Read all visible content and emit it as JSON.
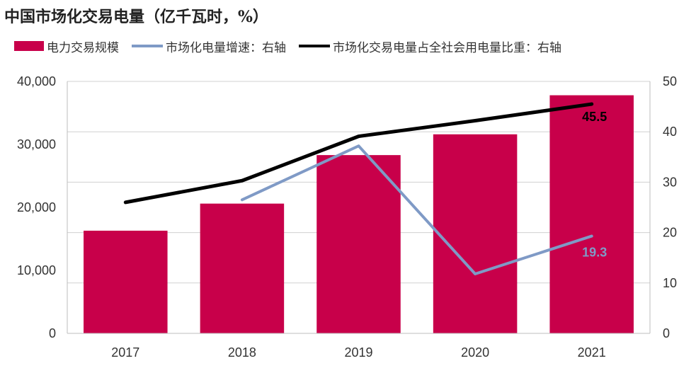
{
  "chart_data": {
    "type": "bar",
    "title": "中国市场化交易电量（亿千瓦时，%）",
    "categories": [
      "2017",
      "2018",
      "2019",
      "2020",
      "2021"
    ],
    "left_axis": {
      "ylim": [
        0,
        40000
      ],
      "ticks": [
        "0",
        "10,000",
        "20,000",
        "30,000",
        "40,000"
      ],
      "tick_values": [
        0,
        10000,
        20000,
        30000,
        40000
      ]
    },
    "right_axis": {
      "ylim": [
        0,
        50
      ],
      "ticks": [
        "0",
        "10",
        "20",
        "30",
        "40",
        "50"
      ],
      "tick_values": [
        0,
        10,
        20,
        30,
        40,
        50
      ]
    },
    "grid": true,
    "legend_position": "top",
    "series": [
      {
        "name": "电力交易规模",
        "type": "bar",
        "axis": "left",
        "color": "#C8004A",
        "values": [
          16300,
          20600,
          28300,
          31600,
          37800
        ]
      },
      {
        "name": "市场化电量增速：右轴",
        "type": "line",
        "axis": "right",
        "color": "#7F9AC6",
        "values": [
          null,
          26.5,
          37.2,
          11.8,
          19.3
        ],
        "end_label": "19.3"
      },
      {
        "name": "市场化交易电量占全社会用电量比重：右轴",
        "type": "line",
        "axis": "right",
        "color": "#000000",
        "values": [
          26.0,
          30.3,
          39.1,
          42.2,
          45.5
        ],
        "end_label": "45.5"
      }
    ]
  }
}
